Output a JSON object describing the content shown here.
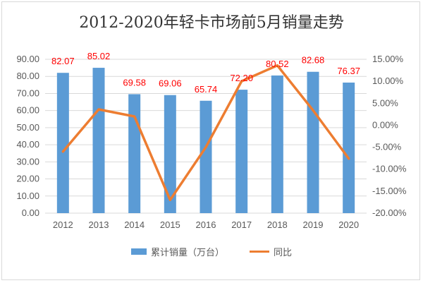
{
  "chart_data": {
    "type": "bar",
    "title": "2012-2020年轻卡市场前5月销量走势",
    "categories": [
      "2012",
      "2013",
      "2014",
      "2015",
      "2016",
      "2017",
      "2018",
      "2019",
      "2020"
    ],
    "series": [
      {
        "name": "累计销量（万台）",
        "type": "bar",
        "axis": "left",
        "color": "#5b9bd5",
        "values": [
          82.07,
          85.02,
          69.58,
          69.06,
          65.74,
          72.2,
          80.52,
          82.68,
          76.37
        ],
        "labels": [
          "82.07",
          "85.02",
          "69.58",
          "69.06",
          "65.74",
          "72.20",
          "80.52",
          "82.68",
          "76.37"
        ]
      },
      {
        "name": "同比",
        "type": "line",
        "axis": "right",
        "color": "#ed7d31",
        "values": [
          -6.0,
          3.6,
          2.0,
          -17.0,
          -5.0,
          10.0,
          13.6,
          3.4,
          -7.6
        ]
      }
    ],
    "y_left": {
      "min": 0,
      "max": 90,
      "step": 10,
      "ticks": [
        "0.00",
        "10.00",
        "20.00",
        "30.00",
        "40.00",
        "50.00",
        "60.00",
        "70.00",
        "80.00",
        "90.00"
      ]
    },
    "y_right": {
      "min": -20,
      "max": 15,
      "step": 5,
      "ticks": [
        "-20.00%",
        "-15.00%",
        "-10.00%",
        "-5.00%",
        "0.00%",
        "5.00%",
        "10.00%",
        "15.00%"
      ]
    },
    "grid": true,
    "legend_position": "bottom"
  }
}
